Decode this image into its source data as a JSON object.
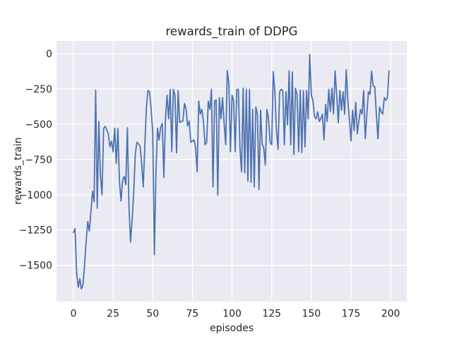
{
  "figure": {
    "background": "#ffffff"
  },
  "chart_data": {
    "type": "line",
    "title": "rewards_train of DDPG",
    "xlabel": "episodes",
    "ylabel": "rewards_train",
    "x_ticks": [
      0,
      25,
      50,
      75,
      100,
      125,
      150,
      175,
      200
    ],
    "x_tick_labels": [
      "0",
      "25",
      "50",
      "75",
      "100",
      "125",
      "150",
      "175",
      "200"
    ],
    "y_ticks": [
      0,
      -250,
      -500,
      -750,
      -1000,
      -1250,
      -1500
    ],
    "y_tick_labels": [
      "0",
      "−250",
      "−500",
      "−750",
      "−1000",
      "−1250",
      "−1500"
    ],
    "xlim": [
      -10.7,
      210.2
    ],
    "ylim": [
      -1757,
      90
    ],
    "grid": true,
    "legend_visible": false,
    "style": {
      "line_color": "#4c72b0",
      "line_width": 1.8,
      "plot_background": "#eaeaf2",
      "grid_color": "#ffffff",
      "text_color": "#262626"
    },
    "series": [
      {
        "name": "rewards_train",
        "x_start": 0,
        "x_step": 1,
        "values": [
          -1268,
          -1240,
          -1555,
          -1655,
          -1595,
          -1668,
          -1635,
          -1500,
          -1330,
          -1190,
          -1258,
          -1125,
          -975,
          -1050,
          -258,
          -1095,
          -480,
          -870,
          -1000,
          -530,
          -515,
          -540,
          -570,
          -660,
          -620,
          -695,
          -528,
          -778,
          -532,
          -903,
          -1045,
          -895,
          -870,
          -930,
          -525,
          -1080,
          -1335,
          -1180,
          -980,
          -712,
          -628,
          -640,
          -655,
          -778,
          -945,
          -650,
          -378,
          -261,
          -270,
          -395,
          -562,
          -1425,
          -845,
          -528,
          -612,
          -520,
          -495,
          -878,
          -462,
          -295,
          -462,
          -253,
          -695,
          -253,
          -295,
          -703,
          -262,
          -487,
          -480,
          -478,
          -353,
          -395,
          -512,
          -478,
          -628,
          -620,
          -612,
          -662,
          -837,
          -336,
          -428,
          -395,
          -487,
          -645,
          -628,
          -336,
          -395,
          -253,
          -945,
          -336,
          -328,
          -1003,
          -312,
          -462,
          -312,
          -495,
          -645,
          -120,
          -211,
          -695,
          -295,
          -336,
          -695,
          -253,
          -253,
          -670,
          -837,
          -245,
          -845,
          -253,
          -905,
          -255,
          -912,
          -395,
          -945,
          -378,
          -428,
          -962,
          -400,
          -640,
          -670,
          -790,
          -395,
          -462,
          -628,
          -645,
          -128,
          -270,
          -545,
          -678,
          -270,
          -253,
          -262,
          -645,
          -270,
          -505,
          -122,
          -645,
          -128,
          -715,
          -245,
          -290,
          -695,
          -258,
          -700,
          -262,
          -660,
          -262,
          -462,
          -5,
          -295,
          -330,
          -445,
          -462,
          -412,
          -480,
          -462,
          -428,
          -612,
          -360,
          -480,
          -253,
          -410,
          -245,
          -428,
          -122,
          -295,
          -490,
          -260,
          -400,
          -270,
          -428,
          -115,
          -330,
          -462,
          -618,
          -400,
          -545,
          -345,
          -567,
          -475,
          -395,
          -430,
          -262,
          -603,
          -428,
          -270,
          -287,
          -125,
          -230,
          -235,
          -428,
          -603,
          -378,
          -412,
          -428,
          -312,
          -330,
          -312,
          -122
        ]
      }
    ]
  }
}
